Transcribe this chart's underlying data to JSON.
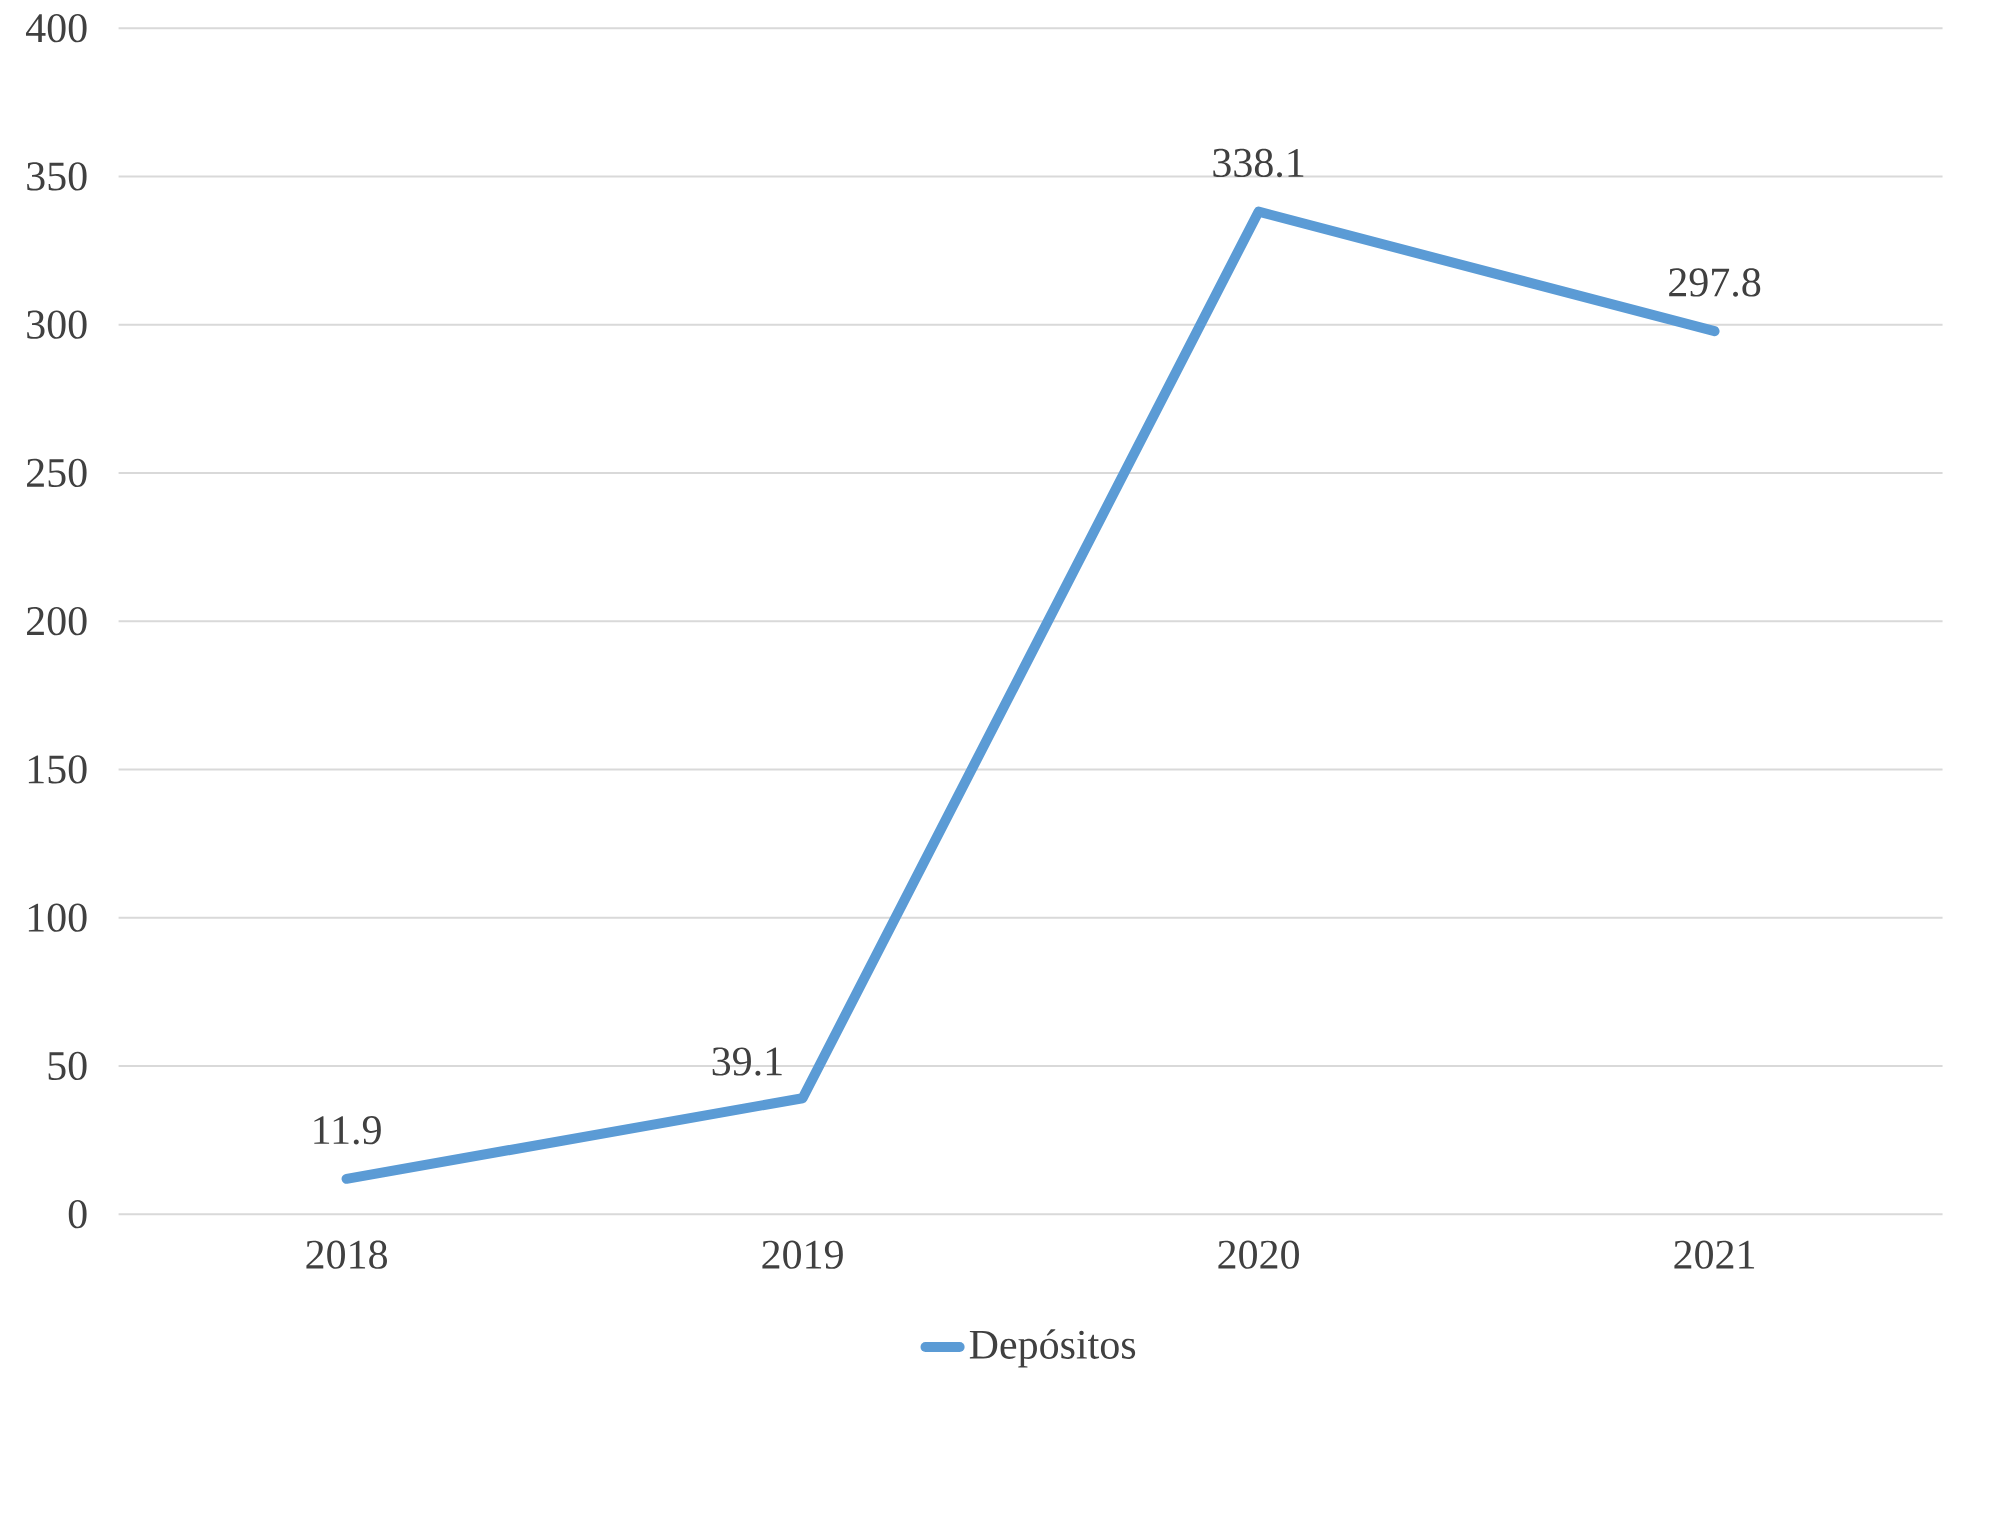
{
  "chart_data": {
    "type": "line",
    "categories": [
      "2018",
      "2019",
      "2020",
      "2021"
    ],
    "series": [
      {
        "name": "Depósitos",
        "color": "#5b9bd5",
        "values": [
          11.9,
          39.1,
          338.1,
          297.8
        ]
      }
    ],
    "ylim": [
      0,
      400
    ],
    "yticks": [
      0,
      50,
      100,
      150,
      200,
      250,
      300,
      350,
      400
    ],
    "grid": "y",
    "legend": "bottom",
    "data_labels": true,
    "marker": "none",
    "line_style": "solid"
  }
}
